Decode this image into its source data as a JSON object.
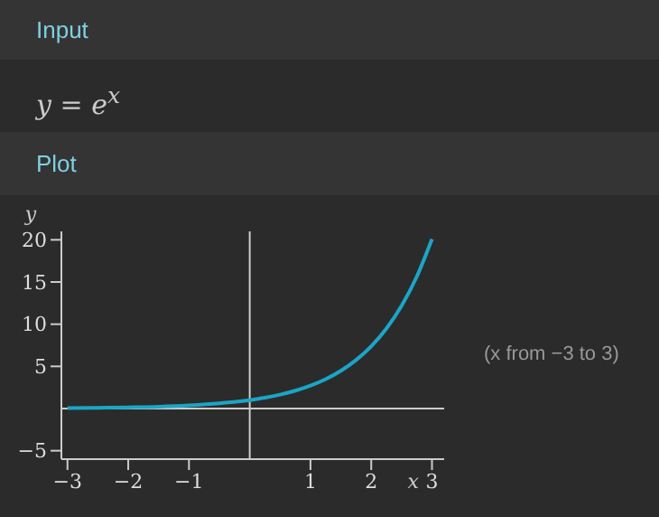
{
  "chart_data": {
    "type": "line",
    "title": "Input",
    "subtitle": "y = e$^{x}$",
    "annotations": [
      "Plot",
      "(x from −3 to 3)"
    ],
    "xlabel": "x",
    "ylabel": "y",
    "x": [
      -3,
      -2.5,
      -2,
      -1.5,
      -1,
      -0.5,
      0,
      0.25,
      0.5,
      0.75,
      1,
      1.25,
      1.5,
      1.75,
      2,
      2.25,
      2.5,
      2.75,
      3
    ],
    "series": [
      {
        "color": "#1ba5c6",
        "values": [
          0.05,
          0.08,
          0.14,
          0.22,
          0.37,
          0.61,
          1,
          1.28,
          1.65,
          2.12,
          2.72,
          3.49,
          4.48,
          5.75,
          7.39,
          9.49,
          12.18,
          15.64,
          20.09
        ]
      }
    ],
    "xlim": [
      -3.1,
      3.2
    ],
    "ylim": [
      -6,
      21
    ],
    "xticks": [
      {
        "value": -3,
        "label": "−3"
      },
      {
        "value": -2,
        "label": "−2"
      },
      {
        "value": -1,
        "label": "−1"
      },
      1,
      2,
      3
    ],
    "yticks": [
      {
        "value": -5,
        "label": "−5"
      },
      5,
      10,
      15,
      20
    ],
    "grid": false,
    "legend": false,
    "marker": "none",
    "line_style": "solid"
  }
}
